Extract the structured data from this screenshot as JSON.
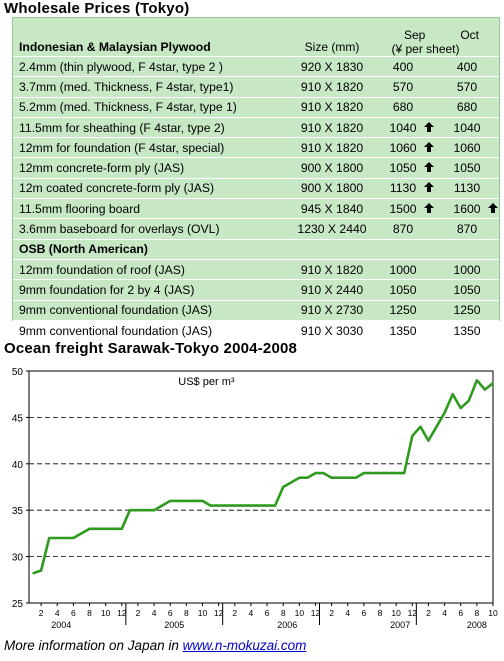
{
  "header": {
    "title": "Wholesale Prices (Tokyo)"
  },
  "table": {
    "sep_label": "Sep",
    "oct_label": "Oct",
    "size_label": "Size (mm)",
    "unit_label": "(¥ per sheet)",
    "section1_title": "Indonesian & Malaysian Plywood",
    "section2_title": "OSB (North American)",
    "arrow_icon": "up-arrow-icon",
    "rows": [
      {
        "desc": "2.4mm  (thin plywood, F 4star, type 2 )",
        "size": "920 X 1830",
        "sep": "400",
        "sep_up": false,
        "oct": "400",
        "oct_up": false
      },
      {
        "desc": "3.7mm  (med. Thickness,  F 4star, type1)",
        "size": "910 X 1820",
        "sep": "570",
        "sep_up": false,
        "oct": "570",
        "oct_up": false
      },
      {
        "desc": "5.2mm  (med. Thickness, F 4star, type 1)",
        "size": "910 X 1820",
        "sep": "680",
        "sep_up": false,
        "oct": "680",
        "oct_up": false
      },
      {
        "desc": "11.5mm  for sheathing (F 4star, type 2)",
        "size": "910 X 1820",
        "sep": "1040",
        "sep_up": true,
        "oct": "1040",
        "oct_up": false
      },
      {
        "desc": "12mm for foundation (F 4star, special)",
        "size": "910 X 1820",
        "sep": "1060",
        "sep_up": true,
        "oct": "1060",
        "oct_up": false
      },
      {
        "desc": "12mm concrete-form ply (JAS)",
        "size": "900 X 1800",
        "sep": "1050",
        "sep_up": true,
        "oct": "1050",
        "oct_up": false
      },
      {
        "desc": "12m coated concrete-form ply (JAS)",
        "size": "900 X 1800",
        "sep": "1130",
        "sep_up": true,
        "oct": "1130",
        "oct_up": false
      },
      {
        "desc": "11.5mm flooring board",
        "size": "945 X 1840",
        "sep": "1500",
        "sep_up": true,
        "oct": "1600",
        "oct_up": true
      },
      {
        "desc": "3.6mm baseboard for overlays (OVL)",
        "size": "1230 X 2440",
        "sep": "870",
        "sep_up": false,
        "oct": "870",
        "oct_up": false
      }
    ],
    "rows2": [
      {
        "desc": "12mm foundation of roof (JAS)",
        "size": "910 X 1820",
        "sep": "1000",
        "sep_up": false,
        "oct": "1000",
        "oct_up": false
      },
      {
        "desc": "9mm foundation for 2 by 4 (JAS)",
        "size": "910 X 2440",
        "sep": "1050",
        "sep_up": false,
        "oct": "1050",
        "oct_up": false
      },
      {
        "desc": "9mm conventional foundation (JAS)",
        "size": "910 X 2730",
        "sep": "1250",
        "sep_up": false,
        "oct": "1250",
        "oct_up": false
      },
      {
        "desc": "9mm conventional foundation (JAS)",
        "size": "910 X 3030",
        "sep": "1350",
        "sep_up": false,
        "oct": "1350",
        "oct_up": false
      }
    ]
  },
  "chart_title": "Ocean freight Sarawak-Tokyo 2004-2008",
  "chart_data": {
    "type": "line",
    "title": "",
    "ylabel": "",
    "unit_label": "US$ per m³",
    "ylim": [
      25,
      50
    ],
    "yticks": [
      25,
      30,
      35,
      40,
      45,
      50
    ],
    "grid": "horizontal dashed",
    "xlim": [
      0.5,
      58
    ],
    "month_ticks": [
      "2",
      "4",
      "6",
      "8",
      "10",
      "12",
      "2",
      "4",
      "6",
      "8",
      "10",
      "12",
      "2",
      "4",
      "6",
      "8",
      "10",
      "12",
      "2",
      "4",
      "6",
      "8",
      "10",
      "12",
      "2",
      "4",
      "6",
      "8",
      "10"
    ],
    "year_labels": [
      {
        "label": "2004",
        "at": 4.5
      },
      {
        "label": "2005",
        "at": 18.5
      },
      {
        "label": "2006",
        "at": 32.5
      },
      {
        "label": "2007",
        "at": 46.5
      },
      {
        "label": "2008",
        "at": 56
      }
    ],
    "line_color": "#2e9a1e",
    "series": [
      {
        "name": "",
        "x": [
          1,
          2,
          3,
          4,
          5,
          6,
          7,
          8,
          9,
          10,
          11,
          12,
          13,
          14,
          15,
          16,
          17,
          18,
          19,
          20,
          21,
          22,
          23,
          24,
          25,
          26,
          27,
          28,
          29,
          30,
          31,
          32,
          33,
          34,
          35,
          36,
          37,
          38,
          39,
          40,
          41,
          42,
          43,
          44,
          45,
          46,
          47,
          48,
          49,
          50,
          51,
          52,
          53,
          54,
          55,
          56,
          57,
          58
        ],
        "values": [
          28.2,
          28.5,
          32,
          32,
          32,
          32,
          32.5,
          33,
          33,
          33,
          33,
          33,
          35,
          35,
          35,
          35,
          35.5,
          36,
          36,
          36,
          36,
          36,
          35.5,
          35.5,
          35.5,
          35.5,
          35.5,
          35.5,
          35.5,
          35.5,
          35.5,
          37.5,
          38,
          38.5,
          38.5,
          39,
          39,
          38.5,
          38.5,
          38.5,
          38.5,
          39,
          39,
          39,
          39,
          39,
          39,
          43,
          44,
          42.5,
          44,
          45.5,
          47.5,
          46,
          46.8,
          49,
          48,
          48.7
        ]
      }
    ]
  },
  "footer": {
    "prefix": "More information on Japan in ",
    "link": "www.n-mokuzai.com"
  }
}
